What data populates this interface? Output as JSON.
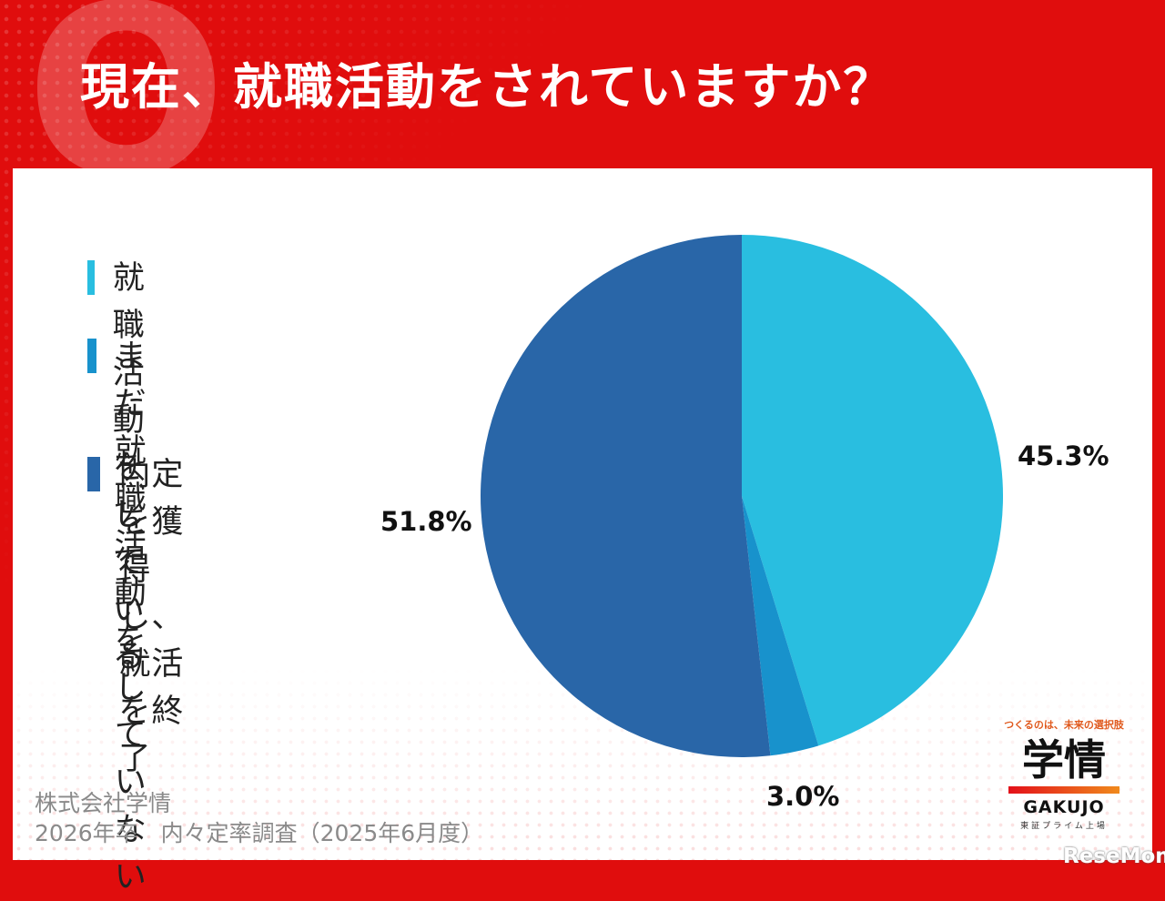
{
  "header": {
    "question_mark": "Q",
    "title": "現在、就職活動をされていますか？"
  },
  "chart_data": {
    "type": "pie",
    "title": "現在、就職活動をされていますか？",
    "series": [
      {
        "name": "就職活動をしている",
        "value": 45.3,
        "label": "45.3%",
        "color": "#29bee0"
      },
      {
        "name": "まだ就職活動をしていない",
        "value": 3.0,
        "label": "3.0%",
        "color": "#1892cc"
      },
      {
        "name": "内定を獲得し、就活を終了",
        "value": 51.8,
        "label": "51.8%",
        "color": "#2966a8"
      }
    ],
    "start": "12 o'clock",
    "direction": "clockwise",
    "legend_position": "left"
  },
  "legend": [
    {
      "lines": [
        "就職活動をしている"
      ],
      "color": "#29bee0"
    },
    {
      "lines": [
        "まだ就職活動を",
        "していない"
      ],
      "color": "#1892cc"
    },
    {
      "lines": [
        "内定を獲得し、",
        "就活を終了"
      ],
      "color": "#2966a8"
    }
  ],
  "source": {
    "company": "株式会社学情",
    "survey": "2026年卒　内々定率調査（2025年6月度）"
  },
  "logo": {
    "tagline": "つくるのは、未来の選択肢",
    "kanji": "学情",
    "english": "GAKUJO",
    "sub": "東証プライム上場"
  },
  "watermark": "ReseMom"
}
